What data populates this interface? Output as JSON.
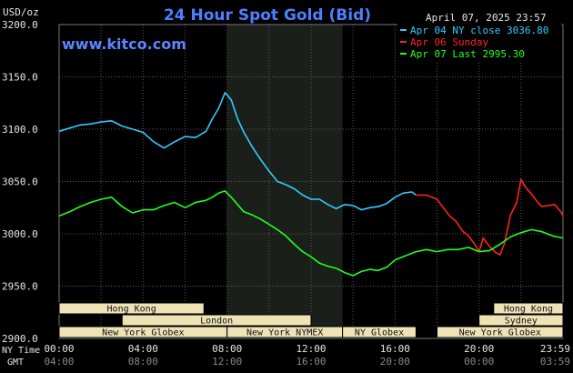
{
  "title": "24 Hour Spot Gold (Bid)",
  "brand": "www.kitco.com",
  "unit_label": "USD/oz",
  "date_label": "April 07, 2025 23:57",
  "axis_rows": {
    "ny": "NY Time",
    "gmt": "GMT"
  },
  "colors": {
    "background": "#000000",
    "grid": "#5a5a5a",
    "highlight": "#1a1f1a",
    "apr04": "#33ccff",
    "apr06": "#ff2222",
    "apr07": "#22ff22",
    "market_box": "#efe3b6",
    "title": "#4f7fff"
  },
  "markets": [
    {
      "label": "Hong Kong",
      "row": 0,
      "start": 0.0,
      "end": 6.9
    },
    {
      "label": "London",
      "row": 1,
      "start": 3.0,
      "end": 12.0
    },
    {
      "label": "New York Globex",
      "row": 2,
      "start": 0.0,
      "end": 8.0
    },
    {
      "label": "New York NYMEX",
      "row": 2,
      "start": 8.0,
      "end": 13.5
    },
    {
      "label": "NY Globex",
      "row": 2,
      "start": 13.5,
      "end": 17.0
    },
    {
      "label": "Hong Kong",
      "row": 0,
      "start": 20.7,
      "end": 24.0
    },
    {
      "label": "Sydney",
      "row": 1,
      "start": 20.0,
      "end": 24.0
    },
    {
      "label": "New York Globex",
      "row": 2,
      "start": 18.0,
      "end": 24.0
    }
  ],
  "chart_data": {
    "type": "line",
    "title": "24 Hour Spot Gold (Bid)",
    "ylabel": "USD/oz",
    "ylim": [
      2900,
      3200
    ],
    "yticks": [
      2900,
      2950,
      3000,
      3050,
      3100,
      3150,
      3200
    ],
    "ytick_labels": [
      "2900.0",
      "2950.0",
      "3000.0",
      "3050.0",
      "3100.0",
      "3150.0",
      "3200.0"
    ],
    "xlim": [
      0,
      24
    ],
    "xticks": [
      0,
      4,
      8,
      12,
      16,
      20,
      24
    ],
    "xtick_labels_ny": [
      "00:00",
      "04:00",
      "08:00",
      "12:00",
      "16:00",
      "20:00",
      "23:59"
    ],
    "xtick_labels_gmt": [
      "04:00",
      "08:00",
      "12:00",
      "16:00",
      "20:00",
      "00:00",
      "03:59"
    ],
    "highlight_hours": [
      8.0,
      13.5
    ],
    "grid": true,
    "legend_position": "top-right",
    "series": [
      {
        "name": "Apr 04 NY close 3036.80",
        "color_key": "apr04",
        "x": [
          0,
          0.5,
          1,
          1.5,
          2,
          2.5,
          3,
          3.5,
          4,
          4.5,
          5,
          5.5,
          6,
          6.5,
          7,
          7.3,
          7.6,
          7.9,
          8.2,
          8.5,
          8.8,
          9.2,
          9.6,
          10,
          10.4,
          10.8,
          11.2,
          11.6,
          12,
          12.4,
          12.8,
          13.2,
          13.6,
          14,
          14.4,
          14.8,
          15.2,
          15.6,
          16,
          16.4,
          16.8,
          17.0
        ],
        "y": [
          3098,
          3101,
          3104,
          3105,
          3107,
          3108,
          3103,
          3100,
          3097,
          3088,
          3082,
          3088,
          3093,
          3092,
          3098,
          3110,
          3120,
          3135,
          3128,
          3110,
          3097,
          3083,
          3071,
          3060,
          3050,
          3047,
          3043,
          3037,
          3033,
          3033,
          3028,
          3024,
          3028,
          3027,
          3023,
          3025,
          3026,
          3029,
          3035,
          3039,
          3040,
          3037
        ]
      },
      {
        "name": "Apr 06 Sunday",
        "color_key": "apr06",
        "x": [
          17.0,
          17.5,
          18.0,
          18.3,
          18.6,
          18.9,
          19.2,
          19.5,
          19.8,
          20.0,
          20.2,
          20.5,
          20.8,
          21.0,
          21.2,
          21.5,
          21.8,
          22.0,
          22.2,
          22.5,
          22.8,
          23.0,
          23.3,
          23.6,
          23.9,
          24.0
        ],
        "y": [
          3037,
          3037,
          3033,
          3025,
          3017,
          3012,
          3003,
          2998,
          2990,
          2983,
          2996,
          2988,
          2982,
          2980,
          2990,
          3018,
          3030,
          3052,
          3045,
          3038,
          3030,
          3026,
          3027,
          3028,
          3021,
          3017
        ]
      },
      {
        "name": "Apr 07 Last 2995.30",
        "color_key": "apr07",
        "x": [
          0,
          0.5,
          1,
          1.5,
          2,
          2.5,
          3,
          3.5,
          4,
          4.5,
          5,
          5.5,
          6,
          6.5,
          7,
          7.3,
          7.6,
          7.9,
          8.2,
          8.5,
          8.8,
          9.2,
          9.6,
          10,
          10.4,
          10.8,
          11.2,
          11.6,
          12,
          12.4,
          12.8,
          13.2,
          13.6,
          14,
          14.4,
          14.8,
          15.2,
          15.6,
          16,
          16.5,
          17,
          17.5,
          18,
          18.5,
          19,
          19.5,
          20,
          20.5,
          21,
          21.5,
          22,
          22.5,
          23,
          23.5,
          24.0
        ],
        "y": [
          3017,
          3021,
          3026,
          3030,
          3033,
          3035,
          3026,
          3020,
          3023,
          3023,
          3027,
          3030,
          3025,
          3030,
          3032,
          3035,
          3039,
          3041,
          3035,
          3028,
          3021,
          3018,
          3014,
          3009,
          3004,
          2998,
          2990,
          2983,
          2978,
          2972,
          2969,
          2967,
          2963,
          2960,
          2964,
          2966,
          2965,
          2968,
          2975,
          2979,
          2983,
          2985,
          2983,
          2985,
          2985,
          2987,
          2983,
          2984,
          2990,
          2997,
          3001,
          3004,
          3002,
          2998,
          2996
        ]
      }
    ]
  }
}
